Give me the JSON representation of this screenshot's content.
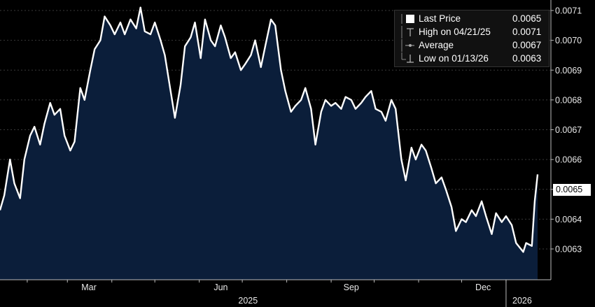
{
  "chart_data": {
    "type": "area",
    "title": "",
    "xlabel": "",
    "ylabel": "",
    "x_tick_labels": [
      "Mar",
      "Jun",
      "Sep",
      "Dec"
    ],
    "year_labels": [
      "2025",
      "2026"
    ],
    "y_ticks": [
      "0.0063",
      "0.0064",
      "0.0065",
      "0.0066",
      "0.0067",
      "0.0068",
      "0.0069",
      "0.0070",
      "0.0071"
    ],
    "ylim": [
      0.00622,
      0.00712
    ],
    "grid": "horizontal",
    "legend_placement": "top-right",
    "colors": {
      "line": "#ffffff",
      "fill": "#0b1e3a",
      "background": "#000000"
    },
    "series": [
      {
        "name": "Last Price",
        "values": [
          [
            "2025-01-13",
            0.00643
          ],
          [
            "2025-01-16",
            0.00648
          ],
          [
            "2025-01-20",
            0.0066
          ],
          [
            "2025-01-23",
            0.00652
          ],
          [
            "2025-01-27",
            0.00647
          ],
          [
            "2025-01-30",
            0.0066
          ],
          [
            "2025-02-03",
            0.00668
          ],
          [
            "2025-02-06",
            0.00671
          ],
          [
            "2025-02-10",
            0.00665
          ],
          [
            "2025-02-13",
            0.00672
          ],
          [
            "2025-02-17",
            0.00679
          ],
          [
            "2025-02-20",
            0.00675
          ],
          [
            "2025-02-24",
            0.00677
          ],
          [
            "2025-02-27",
            0.00668
          ],
          [
            "2025-03-03",
            0.00663
          ],
          [
            "2025-03-06",
            0.00666
          ],
          [
            "2025-03-10",
            0.00684
          ],
          [
            "2025-03-13",
            0.0068
          ],
          [
            "2025-03-17",
            0.0069
          ],
          [
            "2025-03-20",
            0.00697
          ],
          [
            "2025-03-24",
            0.007
          ],
          [
            "2025-03-27",
            0.00708
          ],
          [
            "2025-03-31",
            0.00705
          ],
          [
            "2025-04-03",
            0.00702
          ],
          [
            "2025-04-07",
            0.00706
          ],
          [
            "2025-04-10",
            0.00702
          ],
          [
            "2025-04-14",
            0.00707
          ],
          [
            "2025-04-18",
            0.00704
          ],
          [
            "2025-04-21",
            0.00711
          ],
          [
            "2025-04-24",
            0.00703
          ],
          [
            "2025-04-28",
            0.00702
          ],
          [
            "2025-05-01",
            0.00706
          ],
          [
            "2025-05-05",
            0.007
          ],
          [
            "2025-05-08",
            0.00695
          ],
          [
            "2025-05-12",
            0.00683
          ],
          [
            "2025-05-15",
            0.00674
          ],
          [
            "2025-05-19",
            0.00685
          ],
          [
            "2025-05-22",
            0.00698
          ],
          [
            "2025-05-26",
            0.00701
          ],
          [
            "2025-05-29",
            0.00706
          ],
          [
            "2025-06-02",
            0.00694
          ],
          [
            "2025-06-05",
            0.00707
          ],
          [
            "2025-06-09",
            0.007
          ],
          [
            "2025-06-12",
            0.00698
          ],
          [
            "2025-06-16",
            0.00705
          ],
          [
            "2025-06-19",
            0.00701
          ],
          [
            "2025-06-23",
            0.00694
          ],
          [
            "2025-06-26",
            0.00696
          ],
          [
            "2025-06-30",
            0.0069
          ],
          [
            "2025-07-03",
            0.00692
          ],
          [
            "2025-07-07",
            0.00695
          ],
          [
            "2025-07-10",
            0.007
          ],
          [
            "2025-07-14",
            0.00691
          ],
          [
            "2025-07-17",
            0.00698
          ],
          [
            "2025-07-21",
            0.00707
          ],
          [
            "2025-07-24",
            0.00705
          ],
          [
            "2025-07-28",
            0.0069
          ],
          [
            "2025-07-31",
            0.00683
          ],
          [
            "2025-08-04",
            0.00676
          ],
          [
            "2025-08-07",
            0.00678
          ],
          [
            "2025-08-11",
            0.0068
          ],
          [
            "2025-08-14",
            0.00684
          ],
          [
            "2025-08-18",
            0.00677
          ],
          [
            "2025-08-21",
            0.00665
          ],
          [
            "2025-08-25",
            0.00676
          ],
          [
            "2025-08-28",
            0.0068
          ],
          [
            "2025-09-01",
            0.00678
          ],
          [
            "2025-09-04",
            0.00679
          ],
          [
            "2025-09-08",
            0.00677
          ],
          [
            "2025-09-11",
            0.00681
          ],
          [
            "2025-09-15",
            0.0068
          ],
          [
            "2025-09-18",
            0.00677
          ],
          [
            "2025-09-22",
            0.00679
          ],
          [
            "2025-09-25",
            0.00681
          ],
          [
            "2025-09-29",
            0.00683
          ],
          [
            "2025-10-02",
            0.00677
          ],
          [
            "2025-10-06",
            0.00676
          ],
          [
            "2025-10-09",
            0.00673
          ],
          [
            "2025-10-13",
            0.0068
          ],
          [
            "2025-10-16",
            0.00677
          ],
          [
            "2025-10-20",
            0.0066
          ],
          [
            "2025-10-23",
            0.00653
          ],
          [
            "2025-10-27",
            0.00664
          ],
          [
            "2025-10-30",
            0.0066
          ],
          [
            "2025-11-03",
            0.00665
          ],
          [
            "2025-11-06",
            0.00663
          ],
          [
            "2025-11-10",
            0.00657
          ],
          [
            "2025-11-13",
            0.00652
          ],
          [
            "2025-11-17",
            0.00654
          ],
          [
            "2025-11-20",
            0.0065
          ],
          [
            "2025-11-24",
            0.00644
          ],
          [
            "2025-11-27",
            0.00636
          ],
          [
            "2025-12-01",
            0.0064
          ],
          [
            "2025-12-04",
            0.00639
          ],
          [
            "2025-12-08",
            0.00643
          ],
          [
            "2025-12-11",
            0.00641
          ],
          [
            "2025-12-15",
            0.00646
          ],
          [
            "2025-12-18",
            0.00641
          ],
          [
            "2025-12-22",
            0.00635
          ],
          [
            "2025-12-25",
            0.00642
          ],
          [
            "2025-12-29",
            0.00639
          ],
          [
            "2026-01-01",
            0.00641
          ],
          [
            "2026-01-05",
            0.00638
          ],
          [
            "2026-01-08",
            0.00632
          ],
          [
            "2026-01-13",
            0.00629
          ],
          [
            "2026-01-15",
            0.00632
          ],
          [
            "2026-01-19",
            0.00631
          ],
          [
            "2026-01-21",
            0.00646
          ],
          [
            "2026-01-23",
            0.00655
          ]
        ]
      }
    ],
    "legend": [
      {
        "label": "Last Price",
        "value": "0.0065"
      },
      {
        "label": "High on 04/21/25",
        "value": "0.0071"
      },
      {
        "label": "Average",
        "value": "0.0067"
      },
      {
        "label": "Low on 01/13/26",
        "value": "0.0063"
      }
    ],
    "last_value_label": "0.0065"
  }
}
